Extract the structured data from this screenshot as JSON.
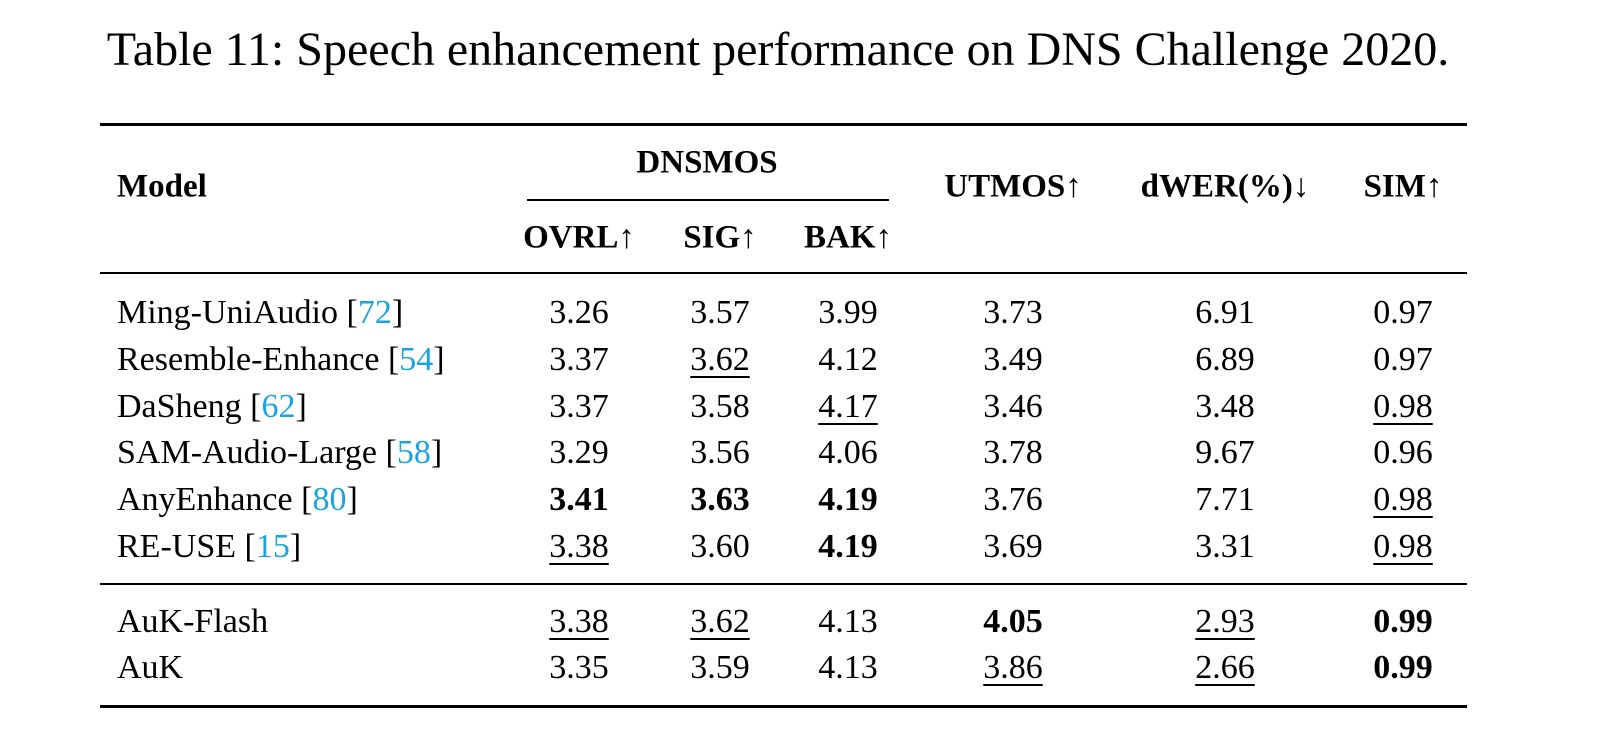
{
  "title": "Table 11: Speech enhancement performance on DNS Challenge 2020.",
  "table": {
    "header": {
      "model": "Model",
      "group": "DNSMOS",
      "columns": [
        "OVRL↑",
        "SIG↑",
        "BAK↑",
        "UTMOS↑",
        "dWER(%)↓",
        "SIM↑"
      ]
    },
    "rows": [
      {
        "model": "Ming-UniAudio",
        "ref": "[72]",
        "values": [
          "3.26",
          "3.57",
          "3.99",
          "3.73",
          "6.91",
          "0.97"
        ]
      },
      {
        "model": "Resemble-Enhance",
        "ref": "[54]",
        "values": [
          "3.37",
          "3.62",
          "4.12",
          "3.49",
          "6.89",
          "0.97"
        ]
      },
      {
        "model": "DaSheng",
        "ref": "[62]",
        "values": [
          "3.37",
          "3.58",
          "4.17",
          "3.46",
          "3.48",
          "0.98"
        ]
      },
      {
        "model": "SAM-Audio-Large",
        "ref": "[58]",
        "values": [
          "3.29",
          "3.56",
          "4.06",
          "3.78",
          "9.67",
          "0.96"
        ]
      },
      {
        "model": "AnyEnhance",
        "ref": "[80]",
        "values": [
          "3.41",
          "3.63",
          "4.19",
          "3.76",
          "7.71",
          "0.98"
        ]
      },
      {
        "model": "RE-USE",
        "ref": "[15]",
        "values": [
          "3.38",
          "3.60",
          "4.19",
          "3.69",
          "3.31",
          "0.98"
        ]
      },
      {
        "model": "AuK-Flash",
        "values": [
          "3.38",
          "3.62",
          "4.13",
          "4.05",
          "2.93",
          "0.99"
        ]
      },
      {
        "model": "AuK",
        "values": [
          "3.35",
          "3.59",
          "4.13",
          "3.86",
          "2.66",
          "0.99"
        ]
      }
    ]
  }
}
